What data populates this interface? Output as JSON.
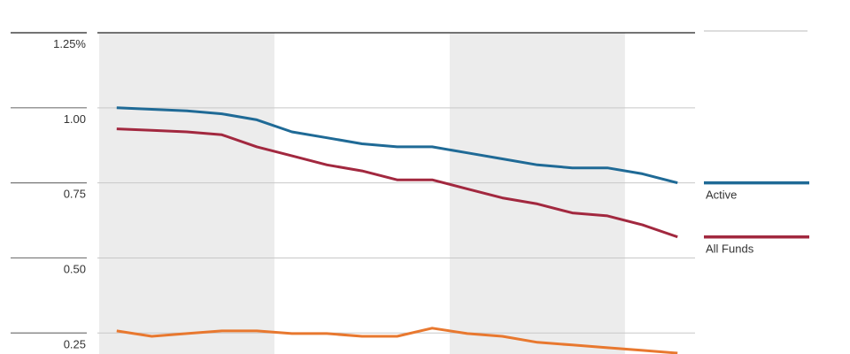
{
  "chart_data": {
    "type": "line",
    "categories": [
      null,
      null,
      null,
      null,
      null,
      null,
      null,
      null,
      null,
      null,
      null,
      null,
      null,
      null,
      null,
      null,
      null
    ],
    "series": [
      {
        "name": "Active",
        "color": "#1f6a96",
        "values": [
          1.0,
          0.995,
          0.99,
          0.98,
          0.96,
          0.92,
          0.9,
          0.88,
          0.87,
          0.87,
          0.85,
          0.83,
          0.81,
          0.8,
          0.8,
          0.78,
          0.75
        ]
      },
      {
        "name": "All Funds",
        "color": "#a2283f",
        "values": [
          0.93,
          0.925,
          0.92,
          0.91,
          0.87,
          0.84,
          0.81,
          0.79,
          0.76,
          0.76,
          0.73,
          0.7,
          0.68,
          0.65,
          0.64,
          0.61,
          0.57
        ]
      },
      {
        "color": "#e8782f",
        "values": [
          0.257,
          0.239,
          0.248,
          0.257,
          0.257,
          0.248,
          0.248,
          0.239,
          0.239,
          0.266,
          0.248,
          0.239,
          0.219,
          0.21,
          0.201,
          0.192,
          0.183
        ]
      }
    ],
    "ylim": [
      0.18,
      1.25
    ],
    "yticks": [
      {
        "value": 0.25,
        "label": "0.25"
      },
      {
        "value": 0.5,
        "label": "0.50"
      },
      {
        "value": 0.75,
        "label": "0.75"
      },
      {
        "value": 1,
        "label": "1.00"
      },
      {
        "value": 1.25,
        "label": "1.25%"
      }
    ],
    "grid": true
  }
}
